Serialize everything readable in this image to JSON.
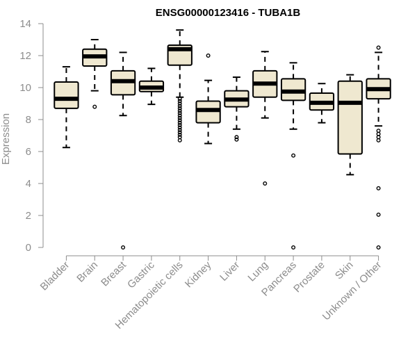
{
  "chart_data": {
    "type": "boxplot",
    "title": "ENSG00000123416 - TUBA1B",
    "ylabel": "Expression",
    "xlabel": "",
    "ylim": [
      0,
      14
    ],
    "yticks": [
      0,
      2,
      4,
      6,
      8,
      10,
      12,
      14
    ],
    "grid": false,
    "legend": "none",
    "box_fill": "#efe8d0",
    "box_stroke": "#000000",
    "axis_color": "#8c8c8c",
    "categories": [
      "Bladder",
      "Brain",
      "Breast",
      "Gastric",
      "Hematopoietic cells",
      "Kidney",
      "Liver",
      "Lung",
      "Pancreas",
      "Prostate",
      "Skin",
      "Unknown / Other"
    ],
    "boxes": [
      {
        "category": "Bladder",
        "whisker_low": 6.25,
        "q1": 8.7,
        "median": 9.3,
        "q3": 10.35,
        "whisker_high": 11.3,
        "outliers": []
      },
      {
        "category": "Brain",
        "whisker_low": 9.8,
        "q1": 11.35,
        "median": 11.95,
        "q3": 12.4,
        "whisker_high": 13.0,
        "outliers": [
          8.8
        ]
      },
      {
        "category": "Breast",
        "whisker_low": 8.25,
        "q1": 9.55,
        "median": 10.4,
        "q3": 11.05,
        "whisker_high": 12.2,
        "outliers": [
          0.0
        ]
      },
      {
        "category": "Gastric",
        "whisker_low": 8.95,
        "q1": 9.75,
        "median": 10.0,
        "q3": 10.4,
        "whisker_high": 11.2,
        "outliers": []
      },
      {
        "category": "Hematopoietic cells",
        "whisker_low": 9.4,
        "q1": 11.4,
        "median": 12.4,
        "q3": 12.65,
        "whisker_high": 13.6,
        "outliers": [
          9.3,
          9.15,
          9.0,
          8.85,
          8.7,
          8.55,
          8.4,
          8.25,
          8.1,
          7.95,
          7.8,
          7.65,
          7.5,
          7.35,
          7.2,
          7.05,
          6.9,
          6.7
        ]
      },
      {
        "category": "Kidney",
        "whisker_low": 6.5,
        "q1": 7.8,
        "median": 8.6,
        "q3": 9.15,
        "whisker_high": 10.45,
        "outliers": [
          12.0
        ]
      },
      {
        "category": "Liver",
        "whisker_low": 7.4,
        "q1": 8.8,
        "median": 9.25,
        "q3": 9.8,
        "whisker_high": 10.65,
        "outliers": [
          6.9,
          6.75
        ]
      },
      {
        "category": "Lung",
        "whisker_low": 8.1,
        "q1": 9.4,
        "median": 10.25,
        "q3": 11.05,
        "whisker_high": 12.25,
        "outliers": [
          4.0
        ]
      },
      {
        "category": "Pancreas",
        "whisker_low": 7.4,
        "q1": 9.2,
        "median": 9.75,
        "q3": 10.55,
        "whisker_high": 11.55,
        "outliers": [
          5.75,
          0.0
        ]
      },
      {
        "category": "Prostate",
        "whisker_low": 7.8,
        "q1": 8.6,
        "median": 9.05,
        "q3": 9.65,
        "whisker_high": 10.25,
        "outliers": []
      },
      {
        "category": "Skin",
        "whisker_low": 4.55,
        "q1": 5.85,
        "median": 9.05,
        "q3": 10.4,
        "whisker_high": 10.8,
        "outliers": []
      },
      {
        "category": "Unknown / Other",
        "whisker_low": 7.6,
        "q1": 9.3,
        "median": 9.9,
        "q3": 10.55,
        "whisker_high": 12.2,
        "outliers": [
          12.5,
          7.3,
          7.1,
          6.9,
          6.7,
          3.7,
          2.05,
          0.0
        ]
      }
    ]
  }
}
